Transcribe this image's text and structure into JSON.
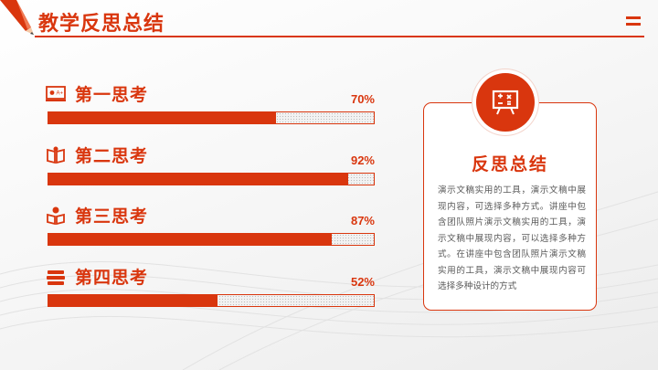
{
  "header": {
    "title": "教学反思总结"
  },
  "colors": {
    "accent": "#d9360e"
  },
  "items": [
    {
      "label": "第一思考",
      "percent_text": "70%",
      "value": 0.7,
      "icon": "classroom-board-icon"
    },
    {
      "label": "第二思考",
      "percent_text": "92%",
      "value": 0.92,
      "icon": "open-book-icon"
    },
    {
      "label": "第三思考",
      "percent_text": "87%",
      "value": 0.87,
      "icon": "reader-icon"
    },
    {
      "label": "第四思考",
      "percent_text": "52%",
      "value": 0.52,
      "icon": "stacked-books-icon"
    }
  ],
  "summary": {
    "title": "反思总结",
    "icon": "math-board-icon",
    "text": "演示文稿实用的工具，演示文稿中展现内容，可选择多种方式。讲座中包含团队照片演示文稿实用的工具，演示文稿中展现内容，可以选择多种方式。在讲座中包含团队照片演示文稿实用的工具，演示文稿中展现内容可选择多种设计的方式"
  }
}
